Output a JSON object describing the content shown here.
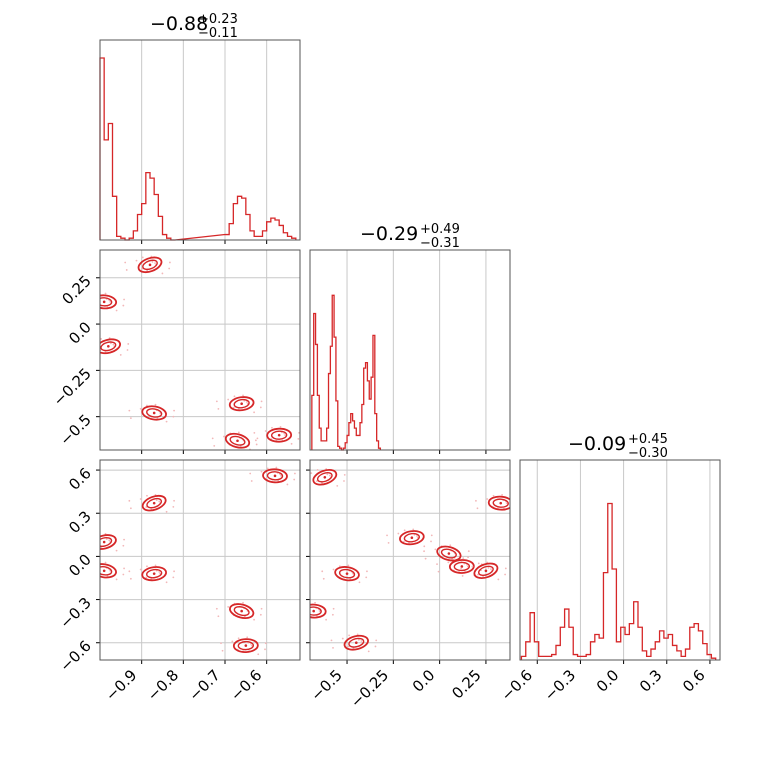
{
  "chart_data": [
    {
      "type": "histogram",
      "panel": "p1",
      "title": {
        "median": "−0.88",
        "plus": "+0.23",
        "minus": "−0.11"
      },
      "xlim": [
        -1.0,
        -0.52
      ],
      "x_ticks": [
        -0.9,
        -0.8,
        -0.7,
        -0.6
      ],
      "bins": [
        [
          -1.0,
          1.0
        ],
        [
          -0.99,
          0.55
        ],
        [
          -0.98,
          0.64
        ],
        [
          -0.97,
          0.24
        ],
        [
          -0.96,
          0.02
        ],
        [
          -0.95,
          0.01
        ],
        [
          -0.94,
          0.0
        ],
        [
          -0.93,
          0.01
        ],
        [
          -0.92,
          0.05
        ],
        [
          -0.91,
          0.14
        ],
        [
          -0.9,
          0.2
        ],
        [
          -0.89,
          0.37
        ],
        [
          -0.88,
          0.34
        ],
        [
          -0.87,
          0.25
        ],
        [
          -0.86,
          0.13
        ],
        [
          -0.85,
          0.03
        ],
        [
          -0.84,
          0.01
        ],
        [
          -0.83,
          0.0
        ],
        [
          -0.7,
          0.03
        ],
        [
          -0.69,
          0.09
        ],
        [
          -0.68,
          0.2
        ],
        [
          -0.67,
          0.24
        ],
        [
          -0.66,
          0.23
        ],
        [
          -0.65,
          0.14
        ],
        [
          -0.64,
          0.05
        ],
        [
          -0.63,
          0.02
        ],
        [
          -0.62,
          0.02
        ],
        [
          -0.61,
          0.05
        ],
        [
          -0.6,
          0.1
        ],
        [
          -0.59,
          0.12
        ],
        [
          -0.58,
          0.11
        ],
        [
          -0.57,
          0.08
        ],
        [
          -0.56,
          0.04
        ],
        [
          -0.55,
          0.02
        ],
        [
          -0.54,
          0.01
        ]
      ]
    },
    {
      "type": "contour2d",
      "panel": "p2",
      "xlim": [
        -1.0,
        -0.52
      ],
      "ylim": [
        -0.68,
        0.4
      ],
      "y_ticks": [
        0.25,
        0.0,
        -0.25,
        -0.5
      ],
      "modes": [
        {
          "x": -0.88,
          "y": 0.32
        },
        {
          "x": -0.99,
          "y": 0.12
        },
        {
          "x": -0.98,
          "y": -0.12
        },
        {
          "x": -0.87,
          "y": -0.48
        },
        {
          "x": -0.66,
          "y": -0.43
        },
        {
          "x": -0.67,
          "y": -0.63
        },
        {
          "x": -0.57,
          "y": -0.6
        }
      ]
    },
    {
      "type": "histogram",
      "panel": "p3",
      "title": {
        "median": "−0.29",
        "plus": "+0.49",
        "minus": "−0.31"
      },
      "xlim": [
        -0.7,
        0.38
      ],
      "bins": [
        [
          -0.69,
          0.3
        ],
        [
          -0.68,
          0.75
        ],
        [
          -0.67,
          0.58
        ],
        [
          -0.66,
          0.3
        ],
        [
          -0.65,
          0.12
        ],
        [
          -0.64,
          0.05
        ],
        [
          -0.63,
          0.05
        ],
        [
          -0.62,
          0.05
        ],
        [
          -0.61,
          0.12
        ],
        [
          -0.6,
          0.42
        ],
        [
          -0.59,
          0.57
        ],
        [
          -0.58,
          0.85
        ],
        [
          -0.57,
          0.62
        ],
        [
          -0.56,
          0.27
        ],
        [
          -0.55,
          0.02
        ],
        [
          -0.54,
          0.01
        ],
        [
          -0.53,
          0.0
        ],
        [
          -0.52,
          0.01
        ],
        [
          -0.51,
          0.04
        ],
        [
          -0.5,
          0.08
        ],
        [
          -0.49,
          0.15
        ],
        [
          -0.48,
          0.2
        ],
        [
          -0.47,
          0.16
        ],
        [
          -0.46,
          0.12
        ],
        [
          -0.45,
          0.08
        ],
        [
          -0.44,
          0.08
        ],
        [
          -0.43,
          0.15
        ],
        [
          -0.42,
          0.25
        ],
        [
          -0.41,
          0.45
        ],
        [
          -0.4,
          0.48
        ],
        [
          -0.39,
          0.38
        ],
        [
          -0.38,
          0.28
        ],
        [
          -0.37,
          0.4
        ],
        [
          -0.36,
          0.63
        ],
        [
          -0.35,
          0.2
        ],
        [
          -0.34,
          0.05
        ],
        [
          -0.33,
          0.01
        ]
      ]
    },
    {
      "type": "contour2d",
      "panel": "p4",
      "xlim": [
        -1.0,
        -0.52
      ],
      "ylim": [
        -0.72,
        0.67
      ],
      "y_ticks": [
        0.6,
        0.3,
        0.0,
        -0.3,
        -0.6
      ],
      "modes": [
        {
          "x": -0.87,
          "y": 0.37
        },
        {
          "x": -0.58,
          "y": 0.56
        },
        {
          "x": -0.99,
          "y": 0.1
        },
        {
          "x": -0.99,
          "y": -0.1
        },
        {
          "x": -0.87,
          "y": -0.12
        },
        {
          "x": -0.66,
          "y": -0.38
        },
        {
          "x": -0.65,
          "y": -0.62
        }
      ]
    },
    {
      "type": "contour2d",
      "panel": "p5",
      "xlim": [
        -0.7,
        0.38
      ],
      "ylim": [
        -0.72,
        0.67
      ],
      "x_ticks": [
        -0.5,
        -0.25,
        0.0,
        0.25
      ],
      "modes": [
        {
          "x": -0.62,
          "y": 0.55
        },
        {
          "x": -0.68,
          "y": -0.38
        },
        {
          "x": -0.45,
          "y": -0.6
        },
        {
          "x": -0.5,
          "y": -0.12
        },
        {
          "x": -0.15,
          "y": 0.13
        },
        {
          "x": 0.05,
          "y": 0.02
        },
        {
          "x": 0.12,
          "y": -0.07
        },
        {
          "x": 0.25,
          "y": -0.1
        },
        {
          "x": 0.33,
          "y": 0.37
        }
      ]
    },
    {
      "type": "histogram",
      "panel": "p6",
      "title": {
        "median": "−0.09",
        "plus": "+0.45",
        "minus": "−0.30"
      },
      "xlim": [
        -0.72,
        0.67
      ],
      "x_ticks": [
        -0.6,
        -0.3,
        0.0,
        0.3,
        0.6
      ],
      "bins": [
        [
          -0.71,
          0.02
        ],
        [
          -0.68,
          0.1
        ],
        [
          -0.65,
          0.26
        ],
        [
          -0.62,
          0.1
        ],
        [
          -0.59,
          0.02
        ],
        [
          -0.56,
          0.02
        ],
        [
          -0.53,
          0.02
        ],
        [
          -0.5,
          0.03
        ],
        [
          -0.47,
          0.08
        ],
        [
          -0.44,
          0.18
        ],
        [
          -0.41,
          0.28
        ],
        [
          -0.38,
          0.18
        ],
        [
          -0.35,
          0.03
        ],
        [
          -0.32,
          0.02
        ],
        [
          -0.29,
          0.02
        ],
        [
          -0.26,
          0.03
        ],
        [
          -0.23,
          0.1
        ],
        [
          -0.2,
          0.14
        ],
        [
          -0.17,
          0.12
        ],
        [
          -0.14,
          0.48
        ],
        [
          -0.11,
          0.86
        ],
        [
          -0.08,
          0.5
        ],
        [
          -0.05,
          0.1
        ],
        [
          -0.02,
          0.18
        ],
        [
          0.01,
          0.14
        ],
        [
          0.04,
          0.2
        ],
        [
          0.07,
          0.32
        ],
        [
          0.1,
          0.18
        ],
        [
          0.13,
          0.05
        ],
        [
          0.16,
          0.02
        ],
        [
          0.19,
          0.06
        ],
        [
          0.22,
          0.1
        ],
        [
          0.25,
          0.16
        ],
        [
          0.28,
          0.12
        ],
        [
          0.31,
          0.14
        ],
        [
          0.34,
          0.08
        ],
        [
          0.37,
          0.05
        ],
        [
          0.4,
          0.02
        ],
        [
          0.43,
          0.06
        ],
        [
          0.46,
          0.18
        ],
        [
          0.49,
          0.2
        ],
        [
          0.52,
          0.16
        ],
        [
          0.55,
          0.09
        ],
        [
          0.58,
          0.03
        ],
        [
          0.61,
          0.01
        ]
      ]
    }
  ],
  "colors": {
    "line": "#d62728",
    "scatter": "#f2b8b9",
    "grid": "#c8c8c8",
    "axis": "#555555"
  },
  "titles": {
    "p1": {
      "median": "−0.88",
      "plus": "+0.23",
      "minus": "−0.11"
    },
    "p3": {
      "median": "−0.29",
      "plus": "+0.49",
      "minus": "−0.31"
    },
    "p6": {
      "median": "−0.09",
      "plus": "+0.45",
      "minus": "−0.30"
    }
  }
}
